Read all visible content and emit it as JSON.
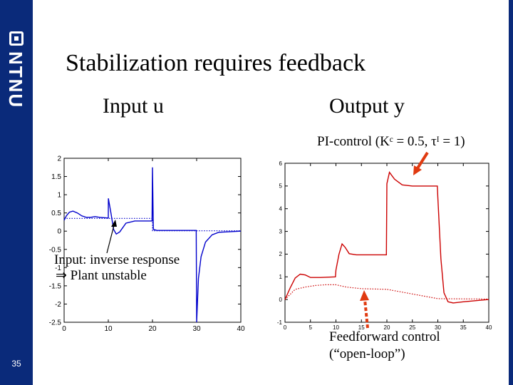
{
  "slide": {
    "title": "Stabilization requires feedback",
    "logo_text": "NTNU",
    "number": "35",
    "input_heading": "Input u",
    "output_heading": "Output y",
    "colors": {
      "sidebar": "#0a2a7a",
      "red": "#cc0000",
      "blue": "#0000cc",
      "arrow": "#e03a10"
    }
  },
  "annotations": {
    "pi_control": "PI-control (Kᶜ = 0.5, τᴵ = 1)",
    "inverse_1": "Input: inverse response",
    "inverse_2": "⇒ Plant unstable",
    "ff_1": "Feedforward control",
    "ff_2": "(“open-loop”)"
  },
  "chart_data": [
    {
      "type": "line",
      "title": "",
      "xlabel": "",
      "ylabel": "",
      "xlim": [
        0,
        40
      ],
      "ylim": [
        -2.5,
        2
      ],
      "xticks": [
        "0",
        "10",
        "20",
        "30",
        "40"
      ],
      "yticks": [
        "2",
        "1.5",
        "1",
        "0.5",
        "0",
        "-0.5",
        "-1",
        "-1.5",
        "-2",
        "-2.5"
      ],
      "series": [
        {
          "style": "solid",
          "color": "#0000cc",
          "points": [
            [
              0,
              0.3
            ],
            [
              0.5,
              0.42
            ],
            [
              1.2,
              0.52
            ],
            [
              2,
              0.55
            ],
            [
              3,
              0.5
            ],
            [
              4,
              0.42
            ],
            [
              5,
              0.38
            ],
            [
              6,
              0.38
            ],
            [
              7,
              0.4
            ],
            [
              8,
              0.38
            ],
            [
              10,
              0.36
            ],
            [
              10.01,
              0.9
            ],
            [
              10.6,
              0.5
            ],
            [
              11.2,
              0.05
            ],
            [
              11.8,
              -0.08
            ],
            [
              12.6,
              -0.02
            ],
            [
              14,
              0.22
            ],
            [
              16,
              0.28
            ],
            [
              19.9,
              0.28
            ],
            [
              20,
              1.75
            ],
            [
              20.2,
              0.05
            ],
            [
              21,
              0.02
            ],
            [
              29.9,
              0.02
            ],
            [
              30,
              -2.5
            ],
            [
              30.4,
              -1.3
            ],
            [
              31,
              -0.7
            ],
            [
              32,
              -0.3
            ],
            [
              33.5,
              -0.1
            ],
            [
              35,
              -0.03
            ],
            [
              40,
              0
            ]
          ]
        },
        {
          "style": "dotted",
          "color": "#0000cc",
          "points": [
            [
              0,
              0.35
            ],
            [
              10,
              0.35
            ],
            [
              20,
              0.35
            ],
            [
              20.01,
              0.01
            ],
            [
              40,
              0.01
            ]
          ]
        }
      ]
    },
    {
      "type": "line",
      "title": "",
      "xlabel": "",
      "ylabel": "",
      "xlim": [
        0,
        40
      ],
      "ylim": [
        -1,
        6
      ],
      "xticks": [
        "0",
        "5",
        "10",
        "15",
        "20",
        "25",
        "30",
        "35",
        "40"
      ],
      "yticks": [
        "6",
        "5",
        "4",
        "3",
        "2",
        "1",
        "0",
        "-1"
      ],
      "series": [
        {
          "style": "solid",
          "color": "#cc0000",
          "points": [
            [
              0,
              0
            ],
            [
              1,
              0.5
            ],
            [
              2,
              0.95
            ],
            [
              3,
              1.12
            ],
            [
              4,
              1.08
            ],
            [
              5,
              0.97
            ],
            [
              7,
              0.97
            ],
            [
              9.9,
              1.0
            ],
            [
              10,
              1.3
            ],
            [
              10.6,
              2.0
            ],
            [
              11.2,
              2.45
            ],
            [
              11.8,
              2.3
            ],
            [
              12.6,
              2.02
            ],
            [
              14,
              1.97
            ],
            [
              19.9,
              1.97
            ],
            [
              20,
              5.1
            ],
            [
              20.5,
              5.6
            ],
            [
              21.5,
              5.3
            ],
            [
              23,
              5.05
            ],
            [
              25,
              5.0
            ],
            [
              29.9,
              5.0
            ],
            [
              30,
              4.5
            ],
            [
              30.6,
              1.8
            ],
            [
              31.2,
              0.3
            ],
            [
              32,
              -0.1
            ],
            [
              33,
              -0.15
            ],
            [
              35,
              -0.1
            ],
            [
              40,
              0
            ]
          ]
        },
        {
          "style": "dotted",
          "color": "#cc0000",
          "points": [
            [
              0,
              0
            ],
            [
              2,
              0.45
            ],
            [
              4,
              0.55
            ],
            [
              6,
              0.62
            ],
            [
              8,
              0.65
            ],
            [
              10,
              0.65
            ],
            [
              12,
              0.55
            ],
            [
              15,
              0.48
            ],
            [
              20,
              0.45
            ],
            [
              30,
              0.04
            ],
            [
              40,
              0.02
            ]
          ]
        }
      ]
    }
  ]
}
